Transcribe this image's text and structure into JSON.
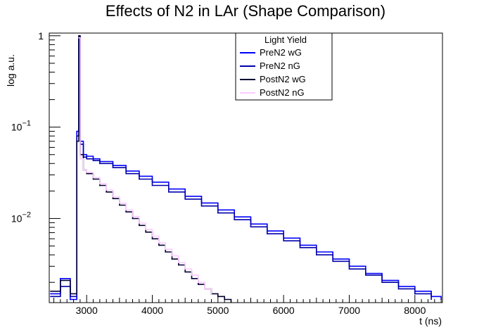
{
  "chart_data": {
    "type": "line",
    "title": "Effects of N2 in LAr (Shape Comparison)",
    "xlabel": "t (ns)",
    "ylabel": "log a.u.",
    "xlim": [
      2430,
      8420
    ],
    "ylim": [
      0.0012,
      1.07
    ],
    "yscale": "log",
    "grid": false,
    "legend": {
      "title": "Light Yield",
      "placement": "top-center"
    },
    "x_ticks": [
      3000,
      4000,
      5000,
      6000,
      7000,
      8000
    ],
    "y_ticks": [
      {
        "value": 1,
        "label": "1"
      },
      {
        "value": 0.1,
        "label": "10",
        "exp": "−1"
      },
      {
        "value": 0.01,
        "label": "10",
        "exp": "−2"
      }
    ],
    "series": [
      {
        "name": "PreN2 wG",
        "color": "#0000ff",
        "x": [
          2450,
          2600,
          2750,
          2850,
          2880,
          2900,
          2950,
          3000,
          3100,
          3200,
          3400,
          3600,
          3800,
          4000,
          4250,
          4500,
          4750,
          5000,
          5250,
          5500,
          5750,
          6000,
          6250,
          6500,
          6750,
          7000,
          7250,
          7500,
          7750,
          8000,
          8250,
          8400
        ],
        "y": [
          0.0015,
          0.0022,
          0.0013,
          0.09,
          0.98,
          0.07,
          0.05,
          0.048,
          0.045,
          0.042,
          0.038,
          0.033,
          0.029,
          0.025,
          0.021,
          0.0175,
          0.0148,
          0.0124,
          0.0104,
          0.0087,
          0.0073,
          0.0061,
          0.0051,
          0.0043,
          0.0036,
          0.003,
          0.0025,
          0.0021,
          0.0018,
          0.0016,
          0.0014,
          0.0013
        ]
      },
      {
        "name": "PreN2 nG",
        "color": "#0000aa",
        "x": [
          2450,
          2600,
          2750,
          2850,
          2880,
          2900,
          2950,
          3000,
          3100,
          3200,
          3400,
          3600,
          3800,
          4000,
          4250,
          4500,
          4750,
          5000,
          5250,
          5500,
          5750,
          6000,
          6250,
          6500,
          6750,
          7000,
          7250,
          7500,
          7750,
          8000,
          8250
        ],
        "y": [
          0.0014,
          0.0018,
          0.0014,
          0.08,
          0.95,
          0.065,
          0.047,
          0.045,
          0.043,
          0.04,
          0.036,
          0.031,
          0.027,
          0.023,
          0.0195,
          0.0163,
          0.0137,
          0.0115,
          0.0097,
          0.0081,
          0.0068,
          0.0057,
          0.0048,
          0.004,
          0.0034,
          0.0028,
          0.0024,
          0.002,
          0.0017,
          0.0015,
          0.0013
        ]
      },
      {
        "name": "PostN2 wG",
        "color": "#000033",
        "x": [
          2450,
          2600,
          2750,
          2850,
          2880,
          2900,
          2950,
          3000,
          3100,
          3200,
          3300,
          3400,
          3500,
          3600,
          3700,
          3800,
          3900,
          4000,
          4100,
          4200,
          4300,
          4400,
          4500,
          4600,
          4700,
          4800,
          4900,
          5000,
          5100,
          5200
        ],
        "y": [
          0.0016,
          0.0021,
          0.0015,
          0.07,
          1.0,
          0.05,
          0.034,
          0.031,
          0.027,
          0.023,
          0.0195,
          0.0165,
          0.014,
          0.0118,
          0.01,
          0.0084,
          0.0071,
          0.006,
          0.0051,
          0.0043,
          0.0036,
          0.0031,
          0.0026,
          0.0022,
          0.0019,
          0.0017,
          0.0015,
          0.0014,
          0.0013,
          0.0012
        ]
      },
      {
        "name": "PostN2 nG",
        "color": "#ffccff",
        "x": [
          2880,
          2900,
          2950,
          3000,
          3100,
          3200,
          3300,
          3400,
          3500,
          3600,
          3700,
          3800,
          3900,
          4000,
          4100,
          4200,
          4300,
          4400,
          4500,
          4600,
          4700,
          4800,
          4900
        ],
        "y": [
          0.95,
          0.045,
          0.034,
          0.032,
          0.028,
          0.024,
          0.0205,
          0.0173,
          0.0147,
          0.0124,
          0.0105,
          0.0089,
          0.0076,
          0.0064,
          0.0054,
          0.0046,
          0.0039,
          0.0033,
          0.0028,
          0.0024,
          0.002,
          0.0017,
          0.0015
        ]
      }
    ]
  }
}
